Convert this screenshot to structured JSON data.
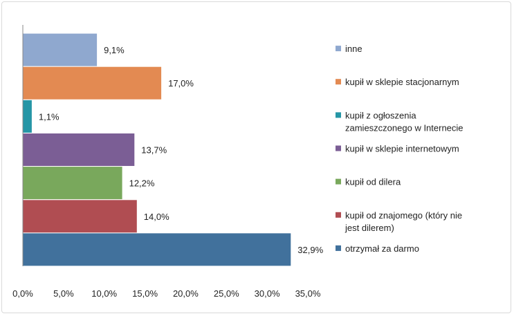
{
  "chart_data": {
    "type": "bar",
    "orientation": "horizontal",
    "title": "",
    "xlabel": "",
    "ylabel": "",
    "xlim": [
      0,
      35
    ],
    "x_ticks": [
      "0,0%",
      "5,0%",
      "10,0%",
      "15,0%",
      "20,0%",
      "25,0%",
      "30,0%",
      "35,0%"
    ],
    "grid": false,
    "legend_position": "right",
    "series": [
      {
        "name": "inne",
        "value": 9.1,
        "label": "9,1%",
        "color": "#8FA8CF",
        "legend_lines": [
          "inne"
        ]
      },
      {
        "name": "kupił w sklepie stacjonarnym",
        "value": 17.0,
        "label": "17,0%",
        "color": "#E38A52",
        "legend_lines": [
          "kupił w sklepie stacjonarnym"
        ]
      },
      {
        "name": "kupił z ogłoszenia zamieszczonego w Internecie",
        "value": 1.1,
        "label": "1,1%",
        "color": "#2596A6",
        "legend_lines": [
          "kupił z ogłoszenia",
          "zamieszczonego w Internecie"
        ]
      },
      {
        "name": "kupił w sklepie internetowym",
        "value": 13.7,
        "label": "13,7%",
        "color": "#7B5E95",
        "legend_lines": [
          "kupił w sklepie internetowym"
        ]
      },
      {
        "name": "kupił od dilera",
        "value": 12.2,
        "label": "12,2%",
        "color": "#79A85C",
        "legend_lines": [
          "kupił od dilera"
        ]
      },
      {
        "name": "kupił od znajomego (który nie jest dilerem)",
        "value": 14.0,
        "label": "14,0%",
        "color": "#B04D52",
        "legend_lines": [
          "kupił od znajomego (który nie",
          "jest dilerem)"
        ]
      },
      {
        "name": "otrzymał za darmo",
        "value": 32.9,
        "label": "32,9%",
        "color": "#41719C",
        "legend_lines": [
          "otrzymał za darmo"
        ]
      }
    ]
  }
}
